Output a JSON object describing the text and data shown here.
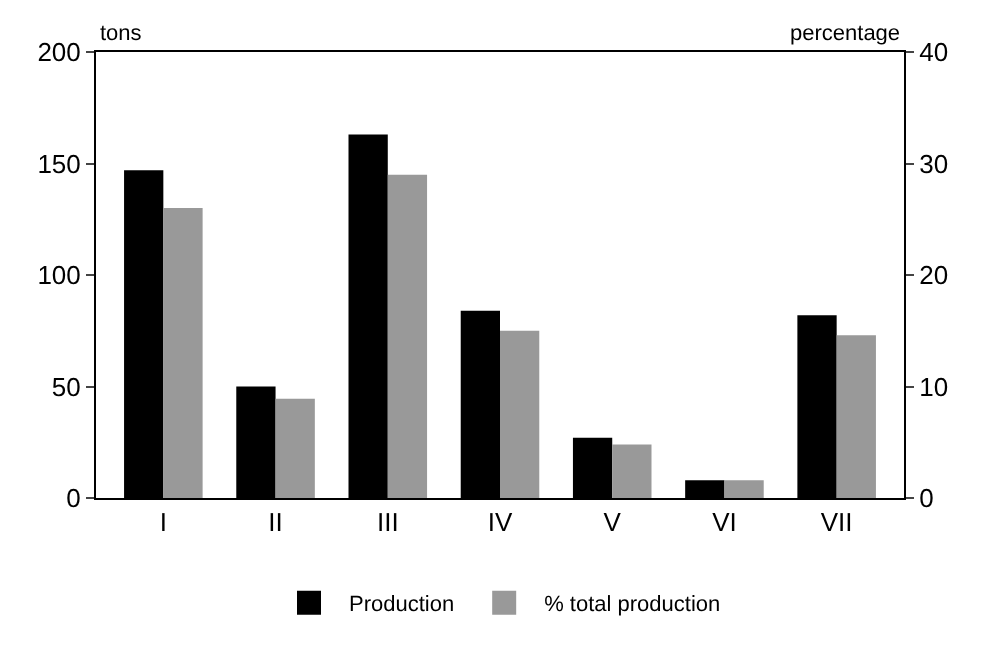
{
  "chart_data": {
    "type": "bar",
    "ylabel": "tons",
    "y2label": "percentage",
    "categories": [
      "I",
      "II",
      "III",
      "IV",
      "V",
      "VI",
      "VII"
    ],
    "series": [
      {
        "name": "Production",
        "color": "#000000",
        "values": [
          147,
          50,
          163,
          84,
          27,
          8,
          82
        ]
      },
      {
        "name": "% total production",
        "color": "#999999",
        "axis": "y2",
        "values": [
          26,
          8.9,
          29,
          15,
          4.8,
          1.6,
          14.6
        ]
      }
    ],
    "ylim": [
      0,
      200
    ],
    "yticks": [
      0,
      50,
      100,
      150,
      200
    ],
    "y2lim": [
      0,
      40
    ],
    "y2ticks": [
      0,
      10,
      20,
      30,
      40
    ],
    "legend": "bottom"
  }
}
